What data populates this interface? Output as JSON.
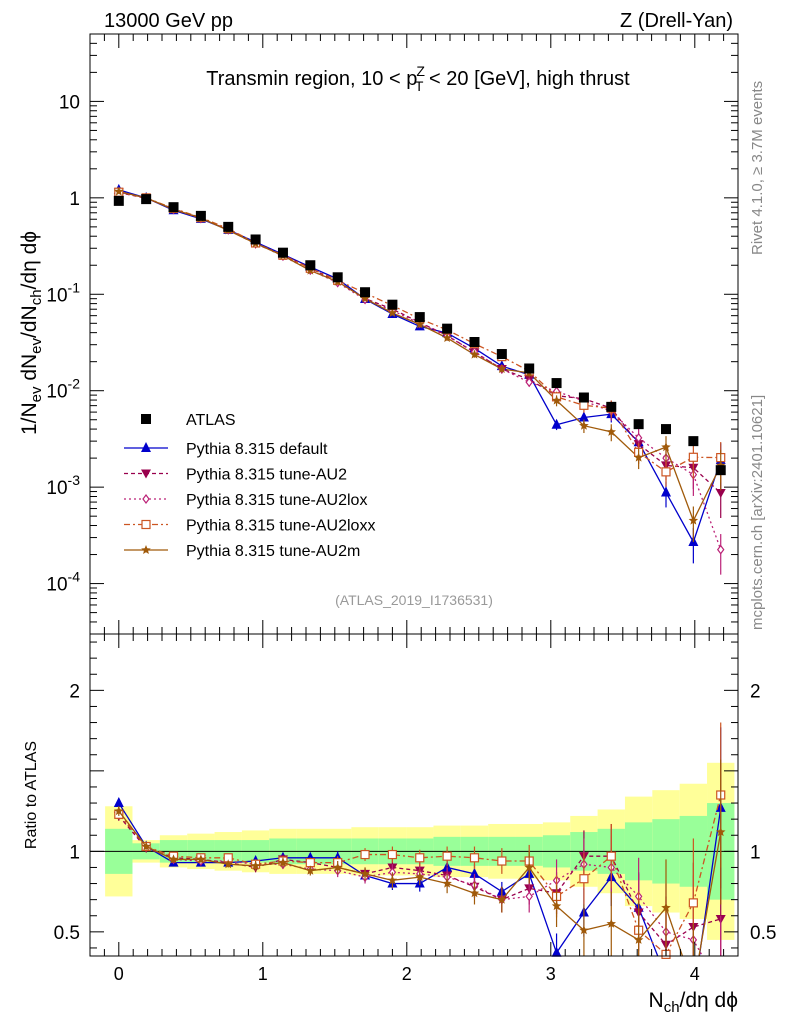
{
  "header": {
    "left": "13000 GeV pp",
    "right": "Z (Drell-Yan)"
  },
  "side_text": {
    "rivet": "Rivet 4.1.0, ≥ 3.7M events",
    "mcplots": "mcplots.cern.ch [arXiv:2401.10621]"
  },
  "chart_data": {
    "type": "line",
    "title_parts": {
      "prefix": "Transmin region, 10 < p",
      "sup": "Z",
      "sub": "T",
      "suffix": " < 20 [GeV], high thrust"
    },
    "analysis_tag": "(ATLAS_2019_I1736531)",
    "ylabel_main": {
      "p1": "1/N",
      "s1": "ev",
      "p2": " dN",
      "s2": "ev",
      "p3": "/dN",
      "s3": "ch",
      "p4": "/dη dϕ"
    },
    "ylabel_ratio": "Ratio to ATLAS",
    "xlabel": {
      "p1": "N",
      "s1": "ch",
      "p2": "/dη dϕ"
    },
    "xlim": [
      -0.2,
      4.3
    ],
    "ylim_main": [
      3e-05,
      50
    ],
    "ylim_ratio": [
      0.35,
      2.35
    ],
    "x_ticks": [
      "0",
      "1",
      "2",
      "3",
      "4"
    ],
    "y_ticks_main": [
      {
        "base": "10",
        "exp": "-4",
        "value": 0.0001
      },
      {
        "base": "10",
        "exp": "-3",
        "value": 0.001
      },
      {
        "base": "10",
        "exp": "-2",
        "value": 0.01
      },
      {
        "base": "10",
        "exp": "-1",
        "value": 0.1
      },
      {
        "base": "1",
        "exp": "",
        "value": 1
      },
      {
        "base": "10",
        "exp": "",
        "value": 10
      }
    ],
    "y_ticks_ratio": [
      "0.5",
      "1",
      "2"
    ],
    "x": [
      0.0,
      0.19,
      0.38,
      0.57,
      0.76,
      0.95,
      1.14,
      1.33,
      1.52,
      1.71,
      1.9,
      2.09,
      2.28,
      2.47,
      2.66,
      2.85,
      3.04,
      3.23,
      3.42,
      3.61,
      3.8,
      3.99,
      4.18
    ],
    "data": {
      "name": "ATLAS",
      "color": "#000000",
      "values": [
        0.93,
        0.97,
        0.8,
        0.65,
        0.5,
        0.37,
        0.27,
        0.2,
        0.15,
        0.105,
        0.078,
        0.058,
        0.044,
        0.032,
        0.024,
        0.017,
        0.012,
        0.0085,
        0.0068,
        0.0045,
        0.004,
        0.003,
        0.0015
      ],
      "band_stat": [
        0.14,
        0.05,
        0.07,
        0.07,
        0.07,
        0.07,
        0.08,
        0.08,
        0.08,
        0.08,
        0.08,
        0.08,
        0.09,
        0.09,
        0.09,
        0.09,
        0.1,
        0.12,
        0.14,
        0.18,
        0.2,
        0.22,
        0.3
      ],
      "band_total": [
        0.28,
        0.07,
        0.1,
        0.11,
        0.12,
        0.13,
        0.14,
        0.14,
        0.14,
        0.15,
        0.15,
        0.15,
        0.16,
        0.16,
        0.17,
        0.17,
        0.18,
        0.22,
        0.26,
        0.34,
        0.38,
        0.42,
        0.55
      ]
    },
    "series": [
      {
        "name": "Pythia 8.315 default",
        "color": "#0000cc",
        "dash": "",
        "marker": "triangle-up",
        "ratio": [
          1.3,
          1.03,
          0.93,
          0.93,
          0.93,
          0.94,
          0.96,
          0.96,
          0.96,
          0.85,
          0.8,
          0.8,
          0.9,
          0.86,
          0.75,
          0.86,
          0.37,
          0.62,
          0.84,
          0.65,
          0.22,
          0.09,
          1.27
        ],
        "err": [
          0.03,
          0.02,
          0.02,
          0.02,
          0.02,
          0.03,
          0.03,
          0.03,
          0.04,
          0.04,
          0.04,
          0.05,
          0.05,
          0.06,
          0.06,
          0.08,
          0.12,
          0.15,
          0.18,
          0.22,
          0.3,
          0.4,
          0.5
        ]
      },
      {
        "name": "Pythia 8.315 tune-AU2",
        "color": "#99004d",
        "dash": "4,3",
        "marker": "triangle-down",
        "ratio": [
          1.22,
          1.02,
          0.96,
          0.95,
          0.93,
          0.9,
          0.95,
          0.93,
          0.9,
          0.86,
          0.9,
          0.88,
          0.85,
          0.78,
          0.7,
          0.77,
          0.74,
          0.97,
          0.97,
          0.62,
          0.42,
          0.53,
          0.58
        ],
        "err": [
          0.03,
          0.02,
          0.02,
          0.02,
          0.02,
          0.03,
          0.03,
          0.03,
          0.04,
          0.04,
          0.05,
          0.05,
          0.06,
          0.07,
          0.08,
          0.1,
          0.13,
          0.16,
          0.2,
          0.24,
          0.3,
          0.4,
          0.45
        ]
      },
      {
        "name": "Pythia 8.315 tune-AU2lox",
        "color": "#bb2277",
        "dash": "2,3",
        "marker": "diamond",
        "ratio": [
          1.24,
          1.03,
          0.95,
          0.94,
          0.94,
          0.92,
          0.92,
          0.89,
          0.88,
          0.84,
          0.87,
          0.86,
          0.84,
          0.79,
          0.7,
          0.72,
          0.82,
          0.92,
          0.9,
          0.72,
          0.5,
          0.45,
          0.15
        ],
        "err": [
          0.03,
          0.02,
          0.02,
          0.02,
          0.02,
          0.03,
          0.03,
          0.03,
          0.04,
          0.04,
          0.05,
          0.05,
          0.06,
          0.07,
          0.08,
          0.1,
          0.13,
          0.16,
          0.2,
          0.24,
          0.3,
          0.4,
          0.45
        ]
      },
      {
        "name": "Pythia 8.315 tune-AU2loxx",
        "color": "#cc5522",
        "dash": "6,3,2,3",
        "marker": "square",
        "ratio": [
          1.23,
          1.03,
          0.97,
          0.96,
          0.96,
          0.92,
          0.94,
          0.93,
          0.93,
          0.98,
          0.98,
          0.96,
          0.97,
          0.96,
          0.94,
          0.94,
          0.72,
          0.83,
          0.97,
          0.51,
          0.36,
          0.68,
          1.35
        ],
        "err": [
          0.03,
          0.02,
          0.02,
          0.02,
          0.02,
          0.03,
          0.03,
          0.03,
          0.04,
          0.04,
          0.05,
          0.05,
          0.06,
          0.07,
          0.08,
          0.1,
          0.13,
          0.16,
          0.2,
          0.24,
          0.3,
          0.4,
          0.45
        ]
      },
      {
        "name": "Pythia 8.315 tune-AU2m",
        "color": "#a05a0a",
        "dash": "",
        "marker": "star",
        "ratio": [
          1.25,
          1.03,
          0.95,
          0.95,
          0.92,
          0.91,
          0.93,
          0.88,
          0.9,
          0.86,
          0.82,
          0.84,
          0.8,
          0.74,
          0.7,
          0.9,
          0.66,
          0.51,
          0.55,
          0.45,
          0.65,
          0.15,
          1.12
        ],
        "err": [
          0.03,
          0.02,
          0.02,
          0.02,
          0.02,
          0.03,
          0.03,
          0.03,
          0.04,
          0.04,
          0.05,
          0.05,
          0.06,
          0.07,
          0.08,
          0.1,
          0.13,
          0.16,
          0.2,
          0.24,
          0.3,
          0.4,
          0.45
        ]
      }
    ]
  }
}
